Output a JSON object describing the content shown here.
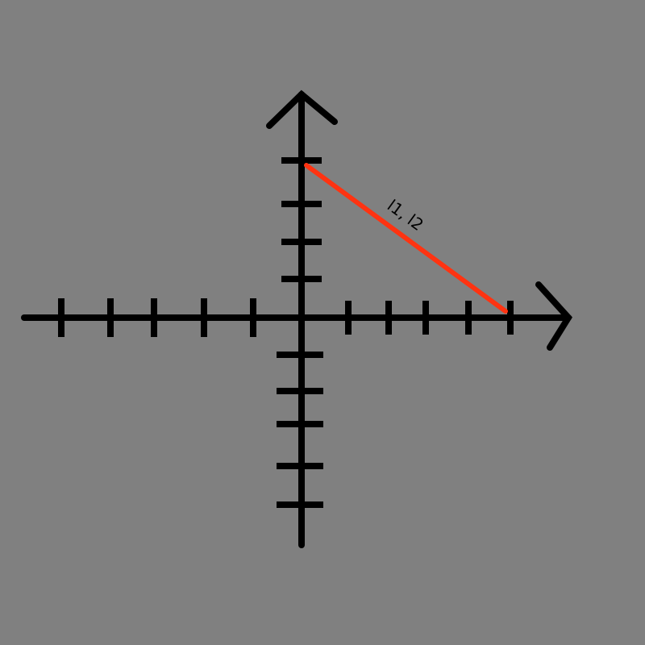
{
  "colors": {
    "background": "#808080",
    "axes": "#000000",
    "segment": "#ff3311"
  },
  "diagram": {
    "segment_label": "l1, l2"
  }
}
